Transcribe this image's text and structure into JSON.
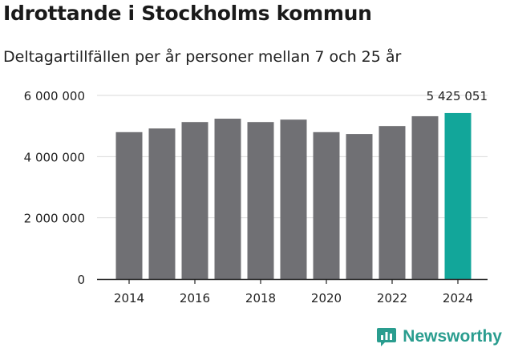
{
  "title": "Idrottande i Stockholms kommun",
  "subtitle": "Deltagartillfällen per år personer mellan 7 och 25 år",
  "brand": {
    "name": "Newsworthy",
    "icon": "newsworthy-logo-icon"
  },
  "colors": {
    "bar": "#707074",
    "highlight": "#12a69a",
    "grid": "#d9d9d9",
    "axis": "#222222",
    "text": "#222222"
  },
  "chart_data": {
    "type": "bar",
    "title": "Idrottande i Stockholms kommun",
    "subtitle": "Deltagartillfällen per år personer mellan 7 och 25 år",
    "xlabel": "",
    "ylabel": "",
    "categories": [
      "2014",
      "2015",
      "2016",
      "2017",
      "2018",
      "2019",
      "2020",
      "2021",
      "2022",
      "2023",
      "2024"
    ],
    "values": [
      4800000,
      4920000,
      5130000,
      5240000,
      5130000,
      5210000,
      4800000,
      4740000,
      5000000,
      5320000,
      5425051
    ],
    "highlight_index": 10,
    "highlight_label": "5 425 051",
    "ylim": [
      0,
      6000000
    ],
    "yticks": [
      0,
      2000000,
      4000000,
      6000000
    ],
    "ytick_labels": [
      "0",
      "2 000 000",
      "4 000 000",
      "6 000 000"
    ],
    "xtick_labels": [
      "2014",
      "2016",
      "2018",
      "2020",
      "2022",
      "2024"
    ],
    "grid": true
  }
}
